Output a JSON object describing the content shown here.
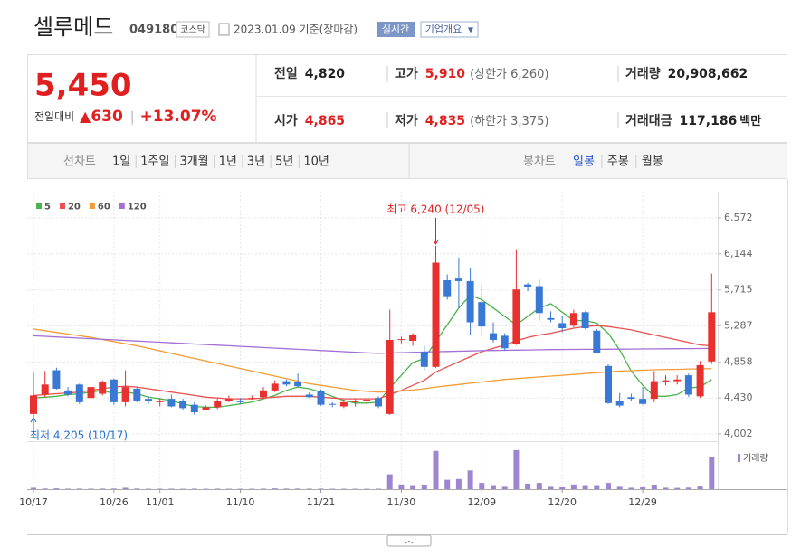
{
  "header": {
    "name": "셀루메드",
    "code": "049180",
    "market": "코스닥",
    "date": "2023.01.09 기준(장마감)",
    "realtime": "실시간",
    "overview": "기업개요"
  },
  "quote": {
    "price": "5,450",
    "change_label": "전일대비",
    "change": "630",
    "rate": "+13.07%",
    "items": [
      {
        "label": "전일",
        "value": "4,820"
      },
      {
        "label": "고가",
        "value": "5,910",
        "note": "(상한가 6,260)"
      },
      {
        "label": "거래량",
        "value": "20,908,662"
      },
      {
        "label": "시가",
        "value": "4,865"
      },
      {
        "label": "저가",
        "value": "4,835",
        "note": "(하한가 3,375)"
      },
      {
        "label": "거래대금",
        "value": "117,186",
        "unit": "백만"
      }
    ]
  },
  "tabs": {
    "line_label": "선차트",
    "line": [
      "1일",
      "1주일",
      "3개월",
      "1년",
      "3년",
      "5년",
      "10년"
    ],
    "candle_label": "봉차트",
    "candle": [
      "일봉",
      "주봉",
      "월봉"
    ]
  },
  "chart_data": {
    "type": "candlestick",
    "categories": [
      "10/17",
      null,
      null,
      null,
      null,
      null,
      null,
      "10/26",
      null,
      null,
      null,
      "11/01",
      null,
      null,
      null,
      null,
      null,
      null,
      "11/10",
      null,
      null,
      null,
      null,
      null,
      null,
      "11/21",
      null,
      null,
      null,
      null,
      null,
      null,
      "11/30",
      null,
      null,
      null,
      null,
      null,
      null,
      "12/09",
      null,
      null,
      null,
      null,
      null,
      null,
      "12/20",
      null,
      null,
      null,
      null,
      null,
      null,
      "12/29",
      null,
      null,
      null,
      null,
      null,
      null
    ],
    "open": [
      4240,
      4470,
      4760,
      4520,
      4590,
      4430,
      4480,
      4650,
      4380,
      4540,
      4420,
      4380,
      4420,
      4390,
      4350,
      4290,
      4320,
      4400,
      4400,
      4420,
      4440,
      4520,
      4630,
      4620,
      4470,
      4510,
      4360,
      4330,
      4380,
      4400,
      4430,
      4240,
      5120,
      5110,
      4980,
      4800,
      5830,
      5850,
      5820,
      5570,
      5200,
      5170,
      5070,
      5780,
      5760,
      5380,
      5320,
      5290,
      5450,
      5230,
      4810,
      4400,
      4440,
      4420,
      4420,
      4620,
      4630,
      4700,
      4450,
      4865
    ],
    "high": [
      4730,
      4750,
      4790,
      4560,
      4600,
      4600,
      4640,
      4660,
      4760,
      4560,
      4450,
      4430,
      4470,
      4420,
      4380,
      4340,
      4420,
      4460,
      4430,
      4460,
      4560,
      4640,
      4650,
      4720,
      4500,
      4530,
      4380,
      4410,
      4420,
      4420,
      4450,
      5480,
      5160,
      5200,
      5050,
      6240,
      5900,
      6100,
      5980,
      5780,
      5330,
      5200,
      6200,
      5800,
      5840,
      5460,
      5400,
      5480,
      5460,
      5250,
      4830,
      4490,
      4480,
      4560,
      4750,
      4700,
      4700,
      4720,
      4870,
      5910
    ],
    "low": [
      4205,
      4440,
      4530,
      4450,
      4360,
      4410,
      4460,
      4350,
      4330,
      4380,
      4360,
      4330,
      4320,
      4290,
      4230,
      4280,
      4300,
      4380,
      4360,
      4410,
      4420,
      4500,
      4570,
      4560,
      4430,
      4340,
      4320,
      4310,
      4330,
      4360,
      4310,
      4230,
      5080,
      5050,
      4760,
      4790,
      5600,
      5500,
      5180,
      5180,
      5090,
      4990,
      5060,
      5700,
      5350,
      5330,
      5210,
      5270,
      5250,
      4960,
      4360,
      4320,
      4390,
      4350,
      4380,
      4580,
      4590,
      4440,
      4430,
      4835
    ],
    "close": [
      4460,
      4590,
      4540,
      4470,
      4380,
      4560,
      4620,
      4380,
      4560,
      4400,
      4400,
      4400,
      4330,
      4310,
      4260,
      4320,
      4400,
      4420,
      4380,
      4430,
      4520,
      4600,
      4590,
      4570,
      4440,
      4350,
      4350,
      4380,
      4400,
      4410,
      4330,
      5120,
      5130,
      5180,
      4800,
      6040,
      5640,
      5820,
      5330,
      5280,
      5120,
      5020,
      5720,
      5750,
      5440,
      5360,
      5260,
      5440,
      5260,
      4970,
      4370,
      4340,
      4420,
      4360,
      4630,
      4640,
      4650,
      4470,
      4820,
      5450
    ],
    "up_color": "#e8302f",
    "down_color": "#3a78d6",
    "ylim": [
      4002,
      6572
    ],
    "yticks": [
      {
        "value": 4002,
        "label": "4,002"
      },
      {
        "value": 4430,
        "label": "4,430"
      },
      {
        "value": 4858,
        "label": "4,858"
      },
      {
        "value": 5287,
        "label": "5,287"
      },
      {
        "value": 5715,
        "label": "5,715"
      },
      {
        "value": 6144,
        "label": "6,144"
      },
      {
        "value": 6572,
        "label": "6,572"
      }
    ],
    "grid": true,
    "series": [
      {
        "name": "5",
        "color": "#4bb34b",
        "values": [
          4430,
          4440,
          4450,
          4470,
          4480,
          4500,
          4520,
          4480,
          4500,
          4480,
          4440,
          4420,
          4400,
          4360,
          4330,
          4320,
          4320,
          4340,
          4360,
          4380,
          4420,
          4460,
          4520,
          4560,
          4540,
          4500,
          4450,
          4400,
          4370,
          4370,
          4380,
          4550,
          4700,
          4850,
          4900,
          5100,
          5300,
          5500,
          5650,
          5600,
          5500,
          5400,
          5300,
          5400,
          5500,
          5550,
          5450,
          5350,
          5350,
          5320,
          5200,
          5000,
          4750,
          4580,
          4450,
          4450,
          4470,
          4550,
          4560,
          4650
        ]
      },
      {
        "name": "20",
        "color": "#e8514f",
        "values": [
          4460,
          4470,
          4480,
          4490,
          4500,
          4520,
          4540,
          4560,
          4570,
          4560,
          4540,
          4520,
          4500,
          4480,
          4460,
          4440,
          4430,
          4420,
          4420,
          4420,
          4430,
          4440,
          4450,
          4450,
          4450,
          4440,
          4430,
          4420,
          4420,
          4420,
          4420,
          4470,
          4520,
          4580,
          4640,
          4740,
          4800,
          4860,
          4920,
          4980,
          5020,
          5060,
          5110,
          5150,
          5180,
          5200,
          5230,
          5260,
          5280,
          5290,
          5280,
          5260,
          5240,
          5210,
          5180,
          5150,
          5120,
          5090,
          5060,
          5050
        ]
      },
      {
        "name": "60",
        "color": "#f39c34",
        "values": [
          5250,
          5230,
          5210,
          5190,
          5170,
          5150,
          5125,
          5100,
          5075,
          5050,
          5020,
          4990,
          4960,
          4930,
          4900,
          4870,
          4840,
          4810,
          4780,
          4750,
          4720,
          4690,
          4660,
          4630,
          4600,
          4580,
          4560,
          4540,
          4520,
          4510,
          4500,
          4505,
          4515,
          4525,
          4540,
          4560,
          4575,
          4590,
          4605,
          4620,
          4635,
          4650,
          4660,
          4670,
          4680,
          4690,
          4700,
          4710,
          4720,
          4730,
          4740,
          4750,
          4755,
          4760,
          4765,
          4770,
          4770,
          4775,
          4775,
          4780
        ]
      },
      {
        "name": "120",
        "color": "#a36fd6",
        "values": [
          5170,
          5163,
          5156,
          5149,
          5142,
          5135,
          5128,
          5121,
          5114,
          5107,
          5100,
          5093,
          5086,
          5079,
          5072,
          5065,
          5058,
          5051,
          5044,
          5037,
          5030,
          5023,
          5016,
          5009,
          5002,
          4995,
          4988,
          4981,
          4974,
          4967,
          4960,
          4964,
          4968,
          4972,
          4976,
          4980,
          4983,
          4986,
          4989,
          4992,
          4995,
          4997,
          4999,
          5001,
          5003,
          5005,
          5006,
          5007,
          5008,
          5009,
          5010,
          5011,
          5012,
          5013,
          5014,
          5015,
          5016,
          5017,
          5018,
          5019
        ]
      }
    ],
    "volume": {
      "name": "거래량",
      "color": "#9d86cf",
      "ylim": [
        0,
        25500000
      ],
      "values": [
        900000,
        400000,
        500000,
        300000,
        350000,
        300000,
        350000,
        400000,
        900000,
        400000,
        250000,
        250000,
        300000,
        250000,
        300000,
        250000,
        300000,
        250000,
        250000,
        250000,
        300000,
        500000,
        350000,
        400000,
        300000,
        300000,
        250000,
        250000,
        250000,
        250000,
        300000,
        9500000,
        3000000,
        2000000,
        2500000,
        24500000,
        6000000,
        6500000,
        12000000,
        4000000,
        2000000,
        1500000,
        25000000,
        3500000,
        4000000,
        1500000,
        1200000,
        3000000,
        2000000,
        2000000,
        4000000,
        1500000,
        900000,
        1200000,
        2500000,
        900000,
        800000,
        1000000,
        1700000,
        20908662
      ]
    },
    "annotations": [
      {
        "text": "최고 6,240 (12/05)"
      },
      {
        "text": "최저 4,205 (10/17)"
      }
    ]
  }
}
